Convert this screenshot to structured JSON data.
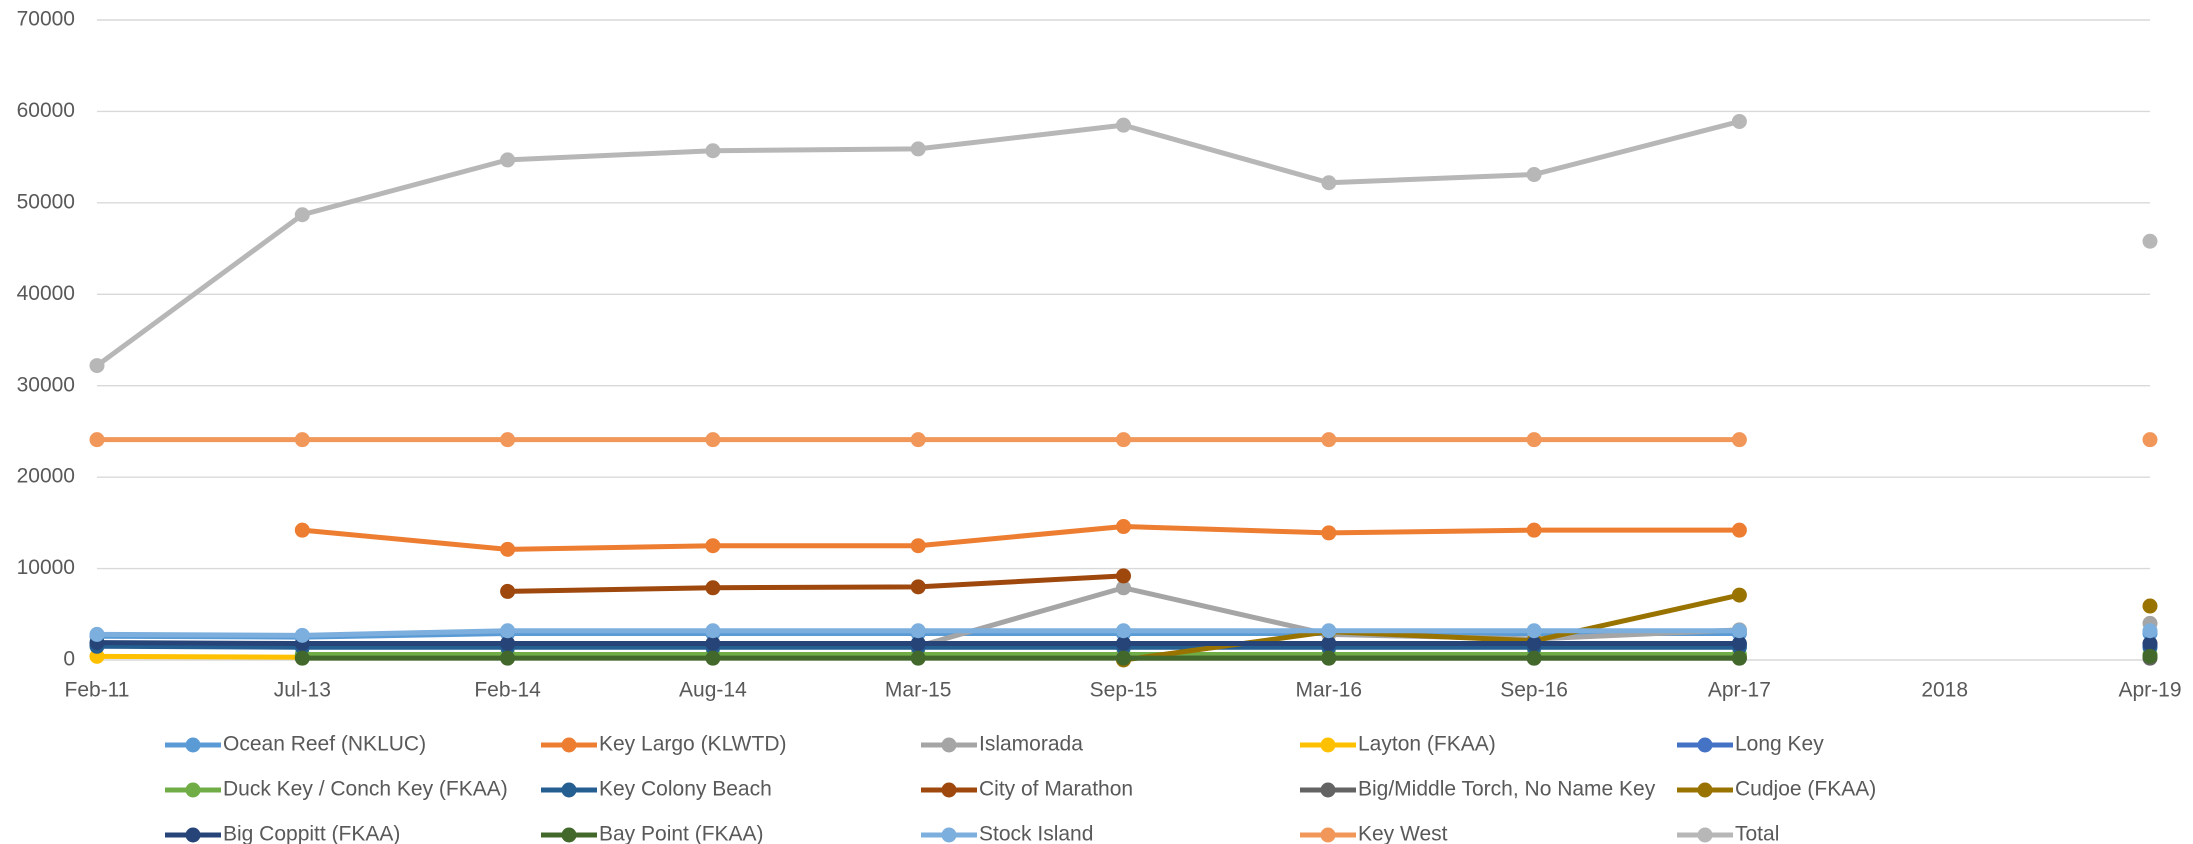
{
  "chart_data": {
    "type": "line",
    "categories": [
      "Feb-11",
      "Jul-13",
      "Feb-14",
      "Aug-14",
      "Mar-15",
      "Sep-15",
      "Mar-16",
      "Sep-16",
      "Apr-17",
      "2018",
      "Apr-19"
    ],
    "ylim": [
      0,
      70000
    ],
    "yticks": [
      0,
      10000,
      20000,
      30000,
      40000,
      50000,
      60000,
      70000
    ],
    "grid": true,
    "legend": "bottom",
    "series": [
      {
        "name": "Ocean Reef (NKLUC)",
        "color": "#5b9bd5",
        "values": [
          2600,
          2500,
          2900,
          2900,
          2900,
          2900,
          2900,
          2900,
          2900,
          null,
          2900
        ]
      },
      {
        "name": "Key Largo (KLWTD)",
        "color": "#ed7d31",
        "values": [
          null,
          14200,
          12100,
          12500,
          12500,
          14600,
          13900,
          14200,
          14200,
          null,
          null
        ]
      },
      {
        "name": "Islamorada",
        "color": "#a5a5a5",
        "values": [
          null,
          null,
          null,
          null,
          1500,
          7900,
          2800,
          2300,
          3300,
          null,
          4000
        ]
      },
      {
        "name": "Layton (FKAA)",
        "color": "#ffc000",
        "values": [
          400,
          300,
          300,
          300,
          300,
          300,
          300,
          300,
          300,
          null,
          300
        ]
      },
      {
        "name": "Long Key",
        "color": "#4472c4",
        "values": [
          1800,
          1700,
          1700,
          1700,
          1700,
          1700,
          1700,
          1700,
          1700,
          null,
          1700
        ]
      },
      {
        "name": "Duck Key / Conch Key (FKAA)",
        "color": "#70ad47",
        "values": [
          null,
          600,
          600,
          600,
          600,
          600,
          600,
          600,
          600,
          null,
          600
        ]
      },
      {
        "name": "Key Colony Beach",
        "color": "#255e91",
        "values": [
          1500,
          1400,
          1400,
          1400,
          1400,
          1400,
          1400,
          1400,
          1400,
          null,
          1400
        ]
      },
      {
        "name": "City of Marathon",
        "color": "#9e480e",
        "values": [
          null,
          null,
          7500,
          7900,
          8000,
          9200,
          null,
          null,
          null,
          null,
          null
        ]
      },
      {
        "name": "Big/Middle Torch, No Name Key",
        "color": "#636363",
        "values": [
          null,
          null,
          null,
          null,
          null,
          200,
          200,
          200,
          200,
          null,
          200
        ]
      },
      {
        "name": "Cudjoe (FKAA)",
        "color": "#997300",
        "values": [
          null,
          null,
          null,
          null,
          null,
          0,
          3100,
          2100,
          7100,
          null,
          5900
        ]
      },
      {
        "name": "Big Coppitt (FKAA)",
        "color": "#264478",
        "values": [
          1900,
          1800,
          1800,
          1800,
          1800,
          1800,
          1800,
          1800,
          1800,
          null,
          1800
        ]
      },
      {
        "name": "Bay Point (FKAA)",
        "color": "#43682b",
        "values": [
          null,
          200,
          200,
          200,
          200,
          200,
          200,
          200,
          200,
          null,
          400
        ]
      },
      {
        "name": "Stock Island",
        "color": "#7cafdd",
        "values": [
          2800,
          2700,
          3200,
          3200,
          3200,
          3200,
          3200,
          3200,
          3200,
          null,
          3200
        ]
      },
      {
        "name": "Key West",
        "color": "#f1975a",
        "values": [
          24100,
          24100,
          24100,
          24100,
          24100,
          24100,
          24100,
          24100,
          24100,
          null,
          24100
        ]
      },
      {
        "name": "Total",
        "color": "#b7b7b7",
        "values": [
          32200,
          48700,
          54700,
          55700,
          55900,
          58500,
          52200,
          53100,
          58900,
          null,
          45800
        ]
      }
    ]
  }
}
